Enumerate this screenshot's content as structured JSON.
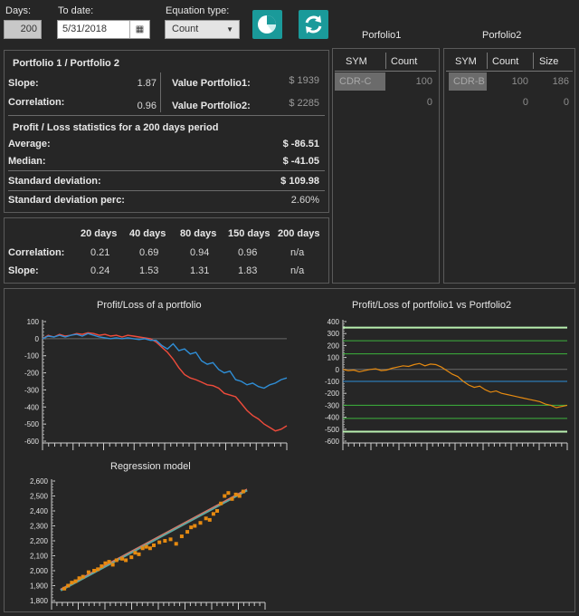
{
  "toolbar": {
    "days_label": "Days:",
    "days_value": "200",
    "todate_label": "To date:",
    "todate_value": "5/31/2018",
    "eqtype_label": "Equation type:",
    "eqtype_value": "Count",
    "pie_icon": "pie-chart-icon",
    "refresh_icon": "refresh-icon"
  },
  "stats": {
    "title": "Portfolio 1 / Portfolio 2",
    "slope_label": "Slope:",
    "slope_value": "1.87",
    "corr_label": "Correlation:",
    "corr_value": "0.96",
    "vp1_label": "Value Portfolio1:",
    "vp1_value": "$ 1939",
    "vp2_label": "Value Portfolio2:",
    "vp2_value": "$ 2285",
    "pl_title": "Profit / Loss statistics for a 200 days period",
    "avg_label": "Average:",
    "avg_value": "$ -86.51",
    "median_label": "Median:",
    "median_value": "$ -41.05",
    "sd_label": "Standard deviation:",
    "sd_value": "$ 109.98",
    "sdp_label": "Standard deviation perc:",
    "sdp_value": "2.60%"
  },
  "periods": {
    "headers": [
      "20 days",
      "40 days",
      "80 days",
      "150 days",
      "200 days"
    ],
    "corr_label": "Correlation:",
    "corr": [
      "0.21",
      "0.69",
      "0.94",
      "0.96",
      "n/a"
    ],
    "slope_label": "Slope:",
    "slope": [
      "0.24",
      "1.53",
      "1.31",
      "1.83",
      "n/a"
    ]
  },
  "portfolio1": {
    "title": "Porfolio1",
    "col_sym": "SYM",
    "col_count": "Count",
    "rows": [
      {
        "sym": "CDR-C",
        "count": "100"
      },
      {
        "sym": "",
        "count": "0"
      }
    ]
  },
  "portfolio2": {
    "title": "Porfolio2",
    "col_sym": "SYM",
    "col_count": "Count",
    "col_size": "Size",
    "rows": [
      {
        "sym": "CDR-B",
        "count": "100",
        "size": "186"
      },
      {
        "sym": "",
        "count": "0",
        "size": "0"
      }
    ]
  },
  "colors": {
    "teal": "#1a9a9a",
    "red": "#ee4b3b",
    "blue": "#2f8ed6",
    "orange": "#e68a10",
    "green": "#3cb43c",
    "lightgreen": "#b9f0b0"
  },
  "chart_data": [
    {
      "type": "line",
      "title": "Profit/Loss of a portfolio",
      "ylim": [
        -600,
        100
      ],
      "yticks": [
        100,
        0,
        -100,
        -200,
        -300,
        -400,
        -500,
        -600
      ],
      "series": [
        {
          "color": "red",
          "values": [
            0,
            20,
            10,
            25,
            15,
            20,
            30,
            25,
            35,
            30,
            20,
            25,
            15,
            20,
            10,
            20,
            15,
            10,
            5,
            0,
            -20,
            -50,
            -80,
            -120,
            -170,
            -210,
            -230,
            -240,
            -255,
            -270,
            -275,
            -290,
            -320,
            -330,
            -340,
            -380,
            -420,
            -450,
            -470,
            -500,
            -520,
            -540,
            -530,
            -510
          ]
        },
        {
          "color": "blue",
          "values": [
            0,
            15,
            10,
            20,
            10,
            20,
            25,
            15,
            30,
            20,
            10,
            5,
            0,
            5,
            0,
            5,
            0,
            -5,
            0,
            -10,
            -10,
            -40,
            -60,
            -30,
            -70,
            -60,
            -90,
            -80,
            -130,
            -150,
            -140,
            -180,
            -200,
            -190,
            -240,
            -250,
            -270,
            -260,
            -280,
            -290,
            -270,
            -260,
            -240,
            -230
          ]
        }
      ]
    },
    {
      "type": "line",
      "title": "Profit/Loss of portfolio1 vs Portfolio2",
      "ylim": [
        -600,
        400
      ],
      "yticks": [
        400,
        300,
        200,
        100,
        0,
        -100,
        -200,
        -300,
        -400,
        -500,
        -600
      ],
      "hlines": [
        {
          "y": 350,
          "color": "lightgreen"
        },
        {
          "y": 240,
          "color": "green"
        },
        {
          "y": 130,
          "color": "green"
        },
        {
          "y": -100,
          "color": "blue"
        },
        {
          "y": -300,
          "color": "green"
        },
        {
          "y": -410,
          "color": "green"
        },
        {
          "y": -520,
          "color": "lightgreen"
        }
      ],
      "series": [
        {
          "color": "orange",
          "values": [
            0,
            -10,
            -5,
            -20,
            -10,
            0,
            5,
            -10,
            -5,
            10,
            20,
            30,
            25,
            40,
            50,
            30,
            45,
            40,
            20,
            -10,
            -40,
            -60,
            -100,
            -130,
            -150,
            -140,
            -170,
            -190,
            -180,
            -200,
            -210,
            -220,
            -230,
            -240,
            -250,
            -260,
            -270,
            -290,
            -300,
            -320,
            -310,
            -300
          ]
        }
      ]
    },
    {
      "type": "scatter",
      "title": "Regression model",
      "ylim": [
        1800,
        2600
      ],
      "yticks": [
        2600,
        2500,
        2400,
        2300,
        2200,
        2100,
        2000,
        1900,
        1800
      ],
      "points": [
        [
          0.02,
          1880
        ],
        [
          0.04,
          1900
        ],
        [
          0.06,
          1920
        ],
        [
          0.08,
          1930
        ],
        [
          0.1,
          1950
        ],
        [
          0.12,
          1960
        ],
        [
          0.15,
          1990
        ],
        [
          0.18,
          2000
        ],
        [
          0.2,
          2010
        ],
        [
          0.22,
          2030
        ],
        [
          0.24,
          2050
        ],
        [
          0.26,
          2060
        ],
        [
          0.28,
          2040
        ],
        [
          0.3,
          2070
        ],
        [
          0.33,
          2080
        ],
        [
          0.35,
          2070
        ],
        [
          0.38,
          2090
        ],
        [
          0.4,
          2120
        ],
        [
          0.42,
          2110
        ],
        [
          0.44,
          2150
        ],
        [
          0.46,
          2160
        ],
        [
          0.48,
          2150
        ],
        [
          0.5,
          2170
        ],
        [
          0.53,
          2190
        ],
        [
          0.56,
          2200
        ],
        [
          0.59,
          2210
        ],
        [
          0.62,
          2180
        ],
        [
          0.65,
          2230
        ],
        [
          0.68,
          2260
        ],
        [
          0.7,
          2290
        ],
        [
          0.72,
          2300
        ],
        [
          0.75,
          2320
        ],
        [
          0.78,
          2350
        ],
        [
          0.8,
          2340
        ],
        [
          0.82,
          2380
        ],
        [
          0.84,
          2400
        ],
        [
          0.86,
          2450
        ],
        [
          0.88,
          2500
        ],
        [
          0.9,
          2520
        ],
        [
          0.92,
          2480
        ],
        [
          0.94,
          2510
        ],
        [
          0.96,
          2500
        ],
        [
          0.98,
          2530
        ]
      ],
      "fit": [
        [
          0.0,
          1870
        ],
        [
          1.0,
          2540
        ]
      ]
    }
  ]
}
